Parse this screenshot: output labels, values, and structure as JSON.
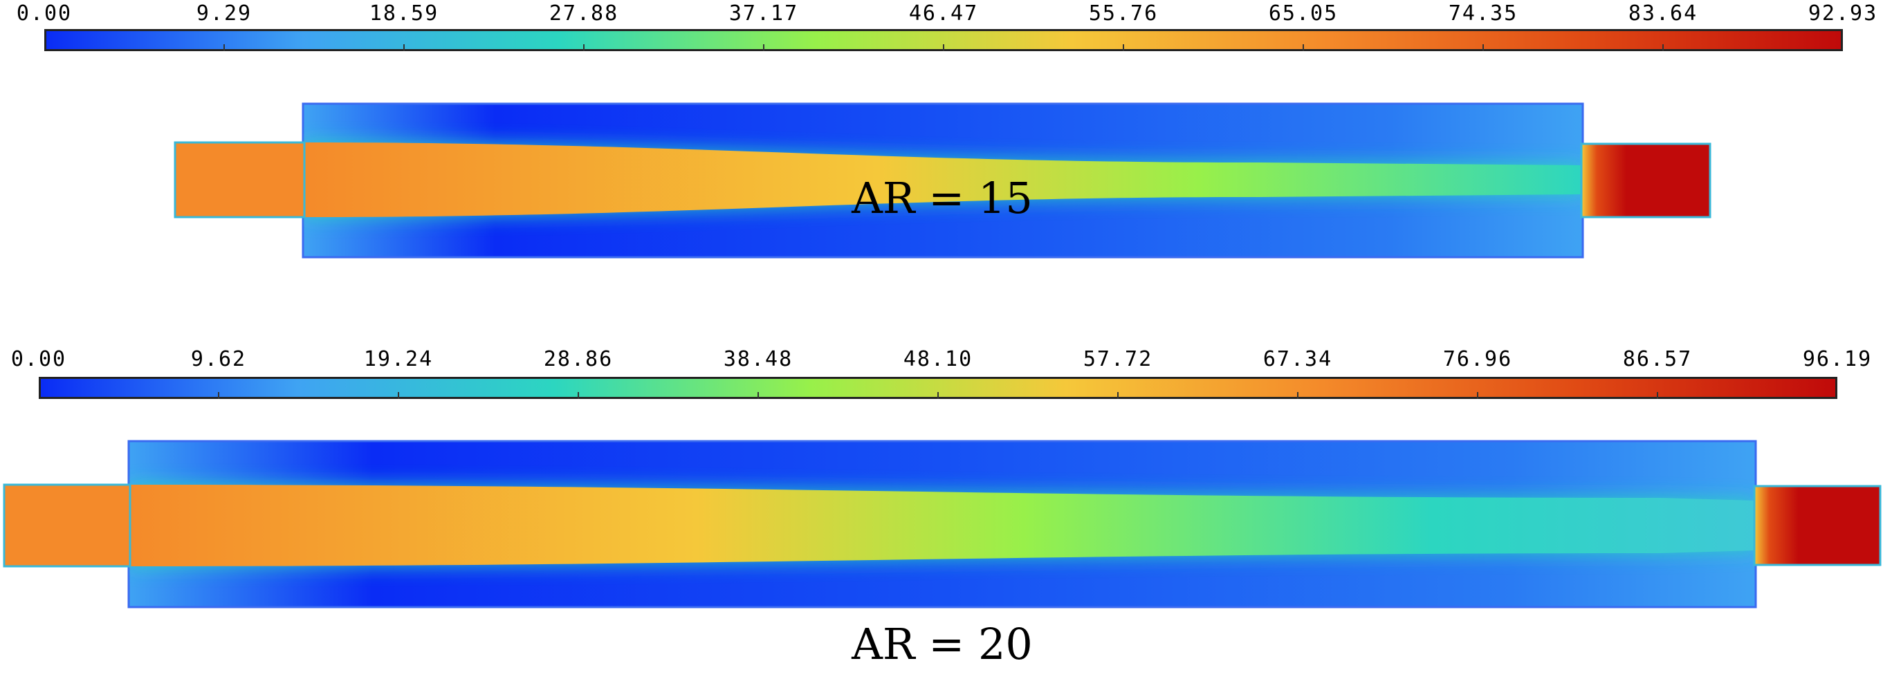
{
  "colormap": [
    "#0a2cf5",
    "#3fa3f3",
    "#2cd6c0",
    "#98f04a",
    "#f5c83a",
    "#f48a2a",
    "#e04a14",
    "#c00a0a"
  ],
  "panels": [
    {
      "id": "ar15",
      "ticks": [
        "0.00",
        "9.29",
        "18.59",
        "27.88",
        "37.17",
        "46.47",
        "55.76",
        "65.05",
        "74.35",
        "83.64",
        "92.93"
      ],
      "min": 0.0,
      "max": 92.93,
      "caption": "AR = 15"
    },
    {
      "id": "ar20",
      "ticks": [
        "0.00",
        "9.62",
        "19.24",
        "28.86",
        "38.48",
        "48.10",
        "57.72",
        "67.34",
        "76.96",
        "86.57",
        "96.19"
      ],
      "min": 0.0,
      "max": 96.19,
      "caption": "AR = 20"
    }
  ]
}
